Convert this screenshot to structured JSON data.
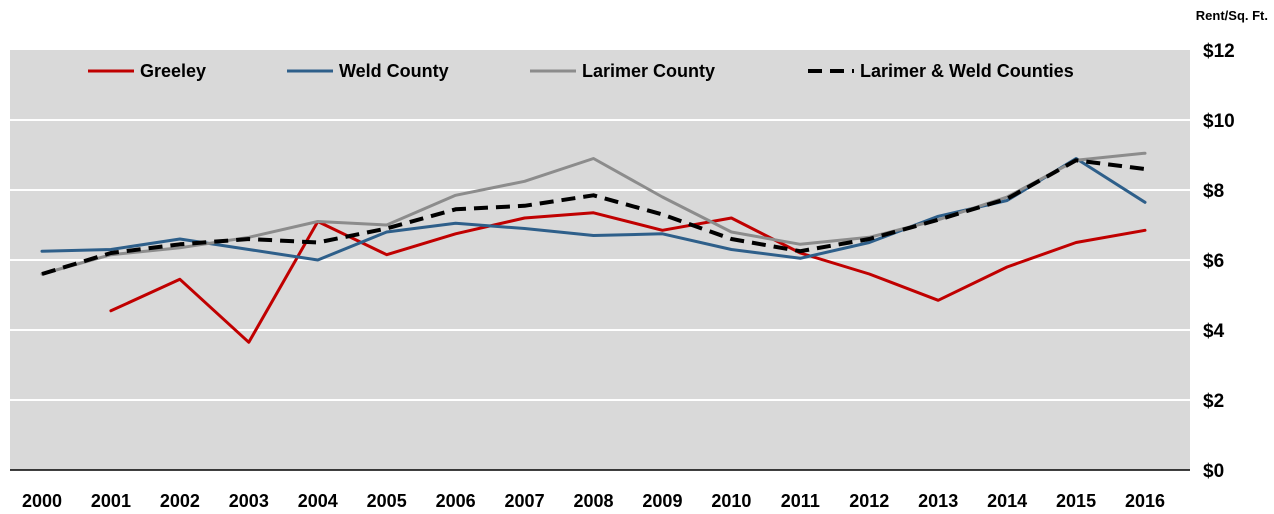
{
  "chart_data": {
    "type": "line",
    "ylabel": "Rent/Sq. Ft.",
    "ylim": [
      0,
      12
    ],
    "ytick_step": 2,
    "ytick_labels": [
      "$0",
      "$2",
      "$4",
      "$6",
      "$8",
      "$10",
      "$12"
    ],
    "categories": [
      "2000",
      "2001",
      "2002",
      "2003",
      "2004",
      "2005",
      "2006",
      "2007",
      "2008",
      "2009",
      "2010",
      "2011",
      "2012",
      "2013",
      "2014",
      "2015",
      "2016"
    ],
    "grid": true,
    "legend": "top",
    "background": "#d9d9d9",
    "series": [
      {
        "name": "Greeley",
        "color": "#c00000",
        "dash": false,
        "values": [
          null,
          4.55,
          5.45,
          3.65,
          7.1,
          6.15,
          6.75,
          7.2,
          7.35,
          6.85,
          7.2,
          6.2,
          5.6,
          4.85,
          5.8,
          6.5,
          6.85
        ]
      },
      {
        "name": "Weld County",
        "color": "#2e5f8a",
        "dash": false,
        "values": [
          6.25,
          6.3,
          6.6,
          6.3,
          6.0,
          6.8,
          7.05,
          6.9,
          6.7,
          6.75,
          6.3,
          6.05,
          6.5,
          7.25,
          7.7,
          8.9,
          7.65
        ]
      },
      {
        "name": "Larimer County",
        "color": "#8c8c8c",
        "dash": false,
        "values": [
          5.6,
          6.15,
          6.35,
          6.65,
          7.1,
          7.0,
          7.85,
          8.25,
          8.9,
          7.8,
          6.8,
          6.45,
          6.65,
          7.15,
          7.8,
          8.85,
          9.05
        ]
      },
      {
        "name": "Larimer & Weld Counties",
        "color": "#000000",
        "dash": true,
        "values": [
          5.6,
          6.2,
          6.45,
          6.6,
          6.5,
          6.9,
          7.45,
          7.55,
          7.85,
          7.3,
          6.6,
          6.25,
          6.6,
          7.15,
          7.75,
          8.85,
          8.6
        ]
      }
    ]
  }
}
